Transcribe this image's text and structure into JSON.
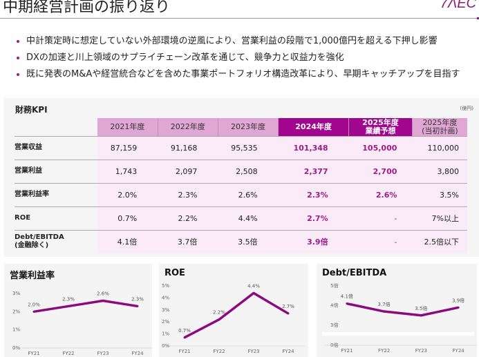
{
  "header": {
    "title": "中期経営計画の振り返り",
    "logo_text": "7ΛEC"
  },
  "bullets": [
    "中計策定時に想定していない外部環境の逆風により、営業利益の段階で1,000億円を超える下押し影響",
    "DXの加速と川上領域のサプライチェーン改革を通じて、競争力と収益力を強化",
    "既に発表のM&Aや経営統合などを含めた事業ポートフォリオ構造改革により、早期キャッチアップを目指す"
  ],
  "kpi": {
    "title": "財務KPI",
    "unit": "(億円)",
    "columns": [
      {
        "line1": "2021年度",
        "line2": "",
        "highlight": false
      },
      {
        "line1": "2022年度",
        "line2": "",
        "highlight": false
      },
      {
        "line1": "2023年度",
        "line2": "",
        "highlight": false
      },
      {
        "line1": "2024年度",
        "line2": "",
        "highlight": true
      },
      {
        "line1": "2025年度",
        "line2": "業績予想",
        "highlight": true
      },
      {
        "line1": "2025年度",
        "line2": "(当初計画)",
        "highlight": false
      }
    ],
    "rows": [
      {
        "label": "営業収益",
        "label2": "",
        "values": [
          "87,159",
          "91,168",
          "95,535",
          "101,348",
          "105,000",
          "110,000"
        ]
      },
      {
        "label": "営業利益",
        "label2": "",
        "values": [
          "1,743",
          "2,097",
          "2,508",
          "2,377",
          "2,700",
          "3,800"
        ]
      },
      {
        "label": "営業利益率",
        "label2": "",
        "values": [
          "2.0%",
          "2.3%",
          "2.6%",
          "2.3%",
          "2.6%",
          "3.5%"
        ]
      },
      {
        "label": "ROE",
        "label2": "",
        "values": [
          "0.7%",
          "2.2%",
          "4.4%",
          "2.7%",
          "-",
          "7%以上"
        ]
      },
      {
        "label": "Debt/EBITDA",
        "label2": "(金融除く)",
        "values": [
          "4.1倍",
          "3.7倍",
          "3.5倍",
          "3.9倍",
          "-",
          "2.5倍以下"
        ]
      }
    ]
  },
  "colors": {
    "accent": "#9b1d8a",
    "header_pink": "#e0a6d4",
    "header_highlight": "#a0068e",
    "row_bg": "#fbeaf8"
  },
  "chart_data": [
    {
      "type": "line",
      "title": "営業利益率",
      "categories": [
        "FY21",
        "FY22",
        "FY23",
        "FY24"
      ],
      "values": [
        2.0,
        2.3,
        2.6,
        2.3
      ],
      "data_labels": [
        "2.0%",
        "2.3%",
        "2.6%",
        "2.3%"
      ],
      "yticks": [
        "0%",
        "1%",
        "2%",
        "3%"
      ],
      "ylim": [
        0,
        3
      ],
      "xlabel": "",
      "ylabel": "",
      "color": "#8b0a80"
    },
    {
      "type": "line",
      "title": "ROE",
      "categories": [
        "FY21",
        "FY22",
        "FY23",
        "FY24"
      ],
      "values": [
        0.7,
        2.2,
        4.4,
        2.7
      ],
      "data_labels": [
        "0.7%",
        "2.2%",
        "4.4%",
        "2.7%"
      ],
      "yticks": [
        "0%",
        "1%",
        "2%",
        "3%",
        "4%",
        "5%"
      ],
      "ylim": [
        0,
        5
      ],
      "xlabel": "",
      "ylabel": "",
      "color": "#8b0a80"
    },
    {
      "type": "line",
      "title": "Debt/EBITDA",
      "categories": [
        "FY21",
        "FY22",
        "FY23",
        "FY24"
      ],
      "values": [
        4.1,
        3.7,
        3.5,
        3.9
      ],
      "data_labels": [
        "4.1倍",
        "3.7倍",
        "3.5倍",
        "3.9倍"
      ],
      "yticks": [
        "0倍",
        "3倍",
        "4倍",
        "5倍"
      ],
      "ylim": [
        3,
        5
      ],
      "axis_break": true,
      "xlabel": "",
      "ylabel": "",
      "color": "#8b0a80"
    }
  ]
}
